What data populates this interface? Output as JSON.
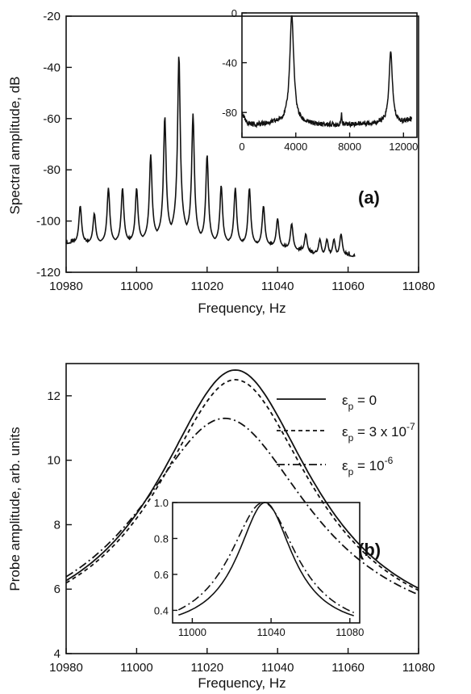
{
  "chart_data": [
    {
      "panel": "a",
      "panel_label": "(a)",
      "type": "line",
      "xlabel": "Frequency, Hz",
      "ylabel": "Spectral amplitude, dB",
      "xlim": [
        10980,
        11080
      ],
      "ylim": [
        -120,
        -20
      ],
      "xticks": [
        10980,
        11000,
        11020,
        11040,
        11060,
        11080
      ],
      "yticks": [
        -120,
        -100,
        -80,
        -60,
        -40,
        -20
      ],
      "grid": false,
      "series": [
        {
          "x_range": [
            10980,
            11062
          ],
          "baseline": [
            [
              10980,
              -109
            ],
            [
              11000,
              -108
            ],
            [
              11010,
              -104
            ],
            [
              11012,
              -101
            ],
            [
              11014,
              -104
            ],
            [
              11020,
              -108
            ],
            [
              11040,
              -110
            ],
            [
              11050,
              -113
            ],
            [
              11062,
              -114
            ]
          ],
          "peaks": [
            {
              "x": 10984,
              "y": -94
            },
            {
              "x": 10988,
              "y": -97
            },
            {
              "x": 10992,
              "y": -87
            },
            {
              "x": 10996,
              "y": -87
            },
            {
              "x": 11000,
              "y": -87
            },
            {
              "x": 11004,
              "y": -74
            },
            {
              "x": 11008,
              "y": -59
            },
            {
              "x": 11012,
              "y": -35
            },
            {
              "x": 11016,
              "y": -58
            },
            {
              "x": 11020,
              "y": -74
            },
            {
              "x": 11024,
              "y": -86
            },
            {
              "x": 11028,
              "y": -87
            },
            {
              "x": 11032,
              "y": -87
            },
            {
              "x": 11036,
              "y": -94
            },
            {
              "x": 11040,
              "y": -99
            },
            {
              "x": 11044,
              "y": -101
            },
            {
              "x": 11048,
              "y": -105
            },
            {
              "x": 11052,
              "y": -107
            },
            {
              "x": 11054,
              "y": -107
            },
            {
              "x": 11056,
              "y": -107
            },
            {
              "x": 11058,
              "y": -105
            }
          ]
        }
      ],
      "inset": {
        "type": "line",
        "xlim": [
          0,
          13000
        ],
        "ylim": [
          -100,
          0
        ],
        "xticks": [
          0,
          4000,
          8000,
          12000
        ],
        "yticks": [
          0,
          -40,
          -80
        ],
        "baseline": [
          [
            0,
            -80
          ],
          [
            300,
            -88
          ],
          [
            1000,
            -90
          ],
          [
            3000,
            -88
          ],
          [
            6000,
            -90
          ],
          [
            9000,
            -89
          ],
          [
            12000,
            -88
          ],
          [
            12600,
            -85
          ]
        ],
        "peaks": [
          {
            "x": 3700,
            "y": -2,
            "width": 180
          },
          {
            "x": 7400,
            "y": -80,
            "width": 30
          },
          {
            "x": 11050,
            "y": -31,
            "width": 150
          }
        ]
      }
    },
    {
      "panel": "b",
      "panel_label": "(b)",
      "type": "line",
      "xlabel": "Frequency, Hz",
      "ylabel": "Probe amplitude, arb. units",
      "xlim": [
        10980,
        11080
      ],
      "ylim": [
        4,
        13
      ],
      "xticks": [
        10980,
        11000,
        11020,
        11040,
        11060,
        11080
      ],
      "yticks": [
        4,
        6,
        8,
        10,
        12
      ],
      "grid": false,
      "legend_position": "top-right",
      "series": [
        {
          "name": "ε_p = 0",
          "legend_parts": [
            "ε",
            "p",
            " = 0",
            ""
          ],
          "style": "solid",
          "peak_x": 11028,
          "peak_y": 12.8,
          "half_width": 27,
          "base": 4.2,
          "shape": 1.0
        },
        {
          "name": "ε_p = 3 x 10^-7",
          "legend_parts": [
            "ε",
            "p",
            " = 3 x 10",
            "-7"
          ],
          "style": "dashed",
          "peak_x": 11028,
          "peak_y": 12.5,
          "half_width": 27,
          "base": 4.2,
          "shape": 1.0
        },
        {
          "name": "ε_p = 10^-6",
          "legend_parts": [
            "ε",
            "p",
            " = 10",
            "-6"
          ],
          "style": "dashdot",
          "peak_x": 11025,
          "peak_y": 11.3,
          "half_width": 30,
          "base": 4.2,
          "shape": 1.0
        }
      ],
      "inset": {
        "type": "line",
        "xlim": [
          10990,
          11085
        ],
        "ylim": [
          0.33,
          1.0
        ],
        "xticks": [
          11000,
          11040,
          11080
        ],
        "yticks": [
          0.4,
          0.6,
          0.8,
          1.0
        ],
        "tick_labels_y": [
          "0.4",
          "0.6",
          "0.8",
          "1.0"
        ],
        "series": [
          {
            "style": "solid",
            "peak_x": 11037,
            "peak_y": 1.0,
            "half_width": 17,
            "floor": 0.28
          },
          {
            "style": "dashdot",
            "peak_x": 11036,
            "peak_y": 1.0,
            "half_width": 21,
            "floor": 0.26
          }
        ]
      }
    }
  ]
}
